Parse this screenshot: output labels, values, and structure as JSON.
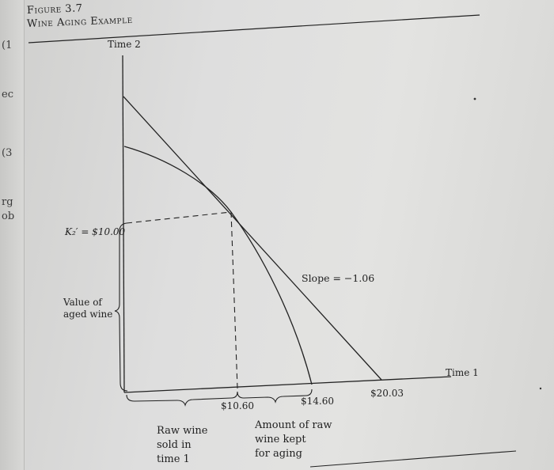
{
  "figure": {
    "number": "Figure 3.7",
    "title": "Wine Aging Example"
  },
  "margin_fragments": [
    "(1",
    "ec",
    "(3",
    "rg",
    "ob"
  ],
  "axes": {
    "y_label": "Time 2",
    "x_label": "Time 1"
  },
  "labels": {
    "k2": "K₂′ = $10.00",
    "value_aged_line1": "Value of",
    "value_aged_line2": "aged wine",
    "slope": "Slope = −1.06",
    "tick_1060": "$10.60",
    "tick_1460": "$14.60",
    "tick_2003": "$20.03",
    "raw_sold_line1": "Raw wine",
    "raw_sold_line2": "sold in",
    "raw_sold_line3": "time 1",
    "kept_line1": "Amount of raw",
    "kept_line2": "wine kept",
    "kept_line3": "for aging"
  },
  "colors": {
    "ink": "#222222",
    "paper": "#e0e0de"
  }
}
